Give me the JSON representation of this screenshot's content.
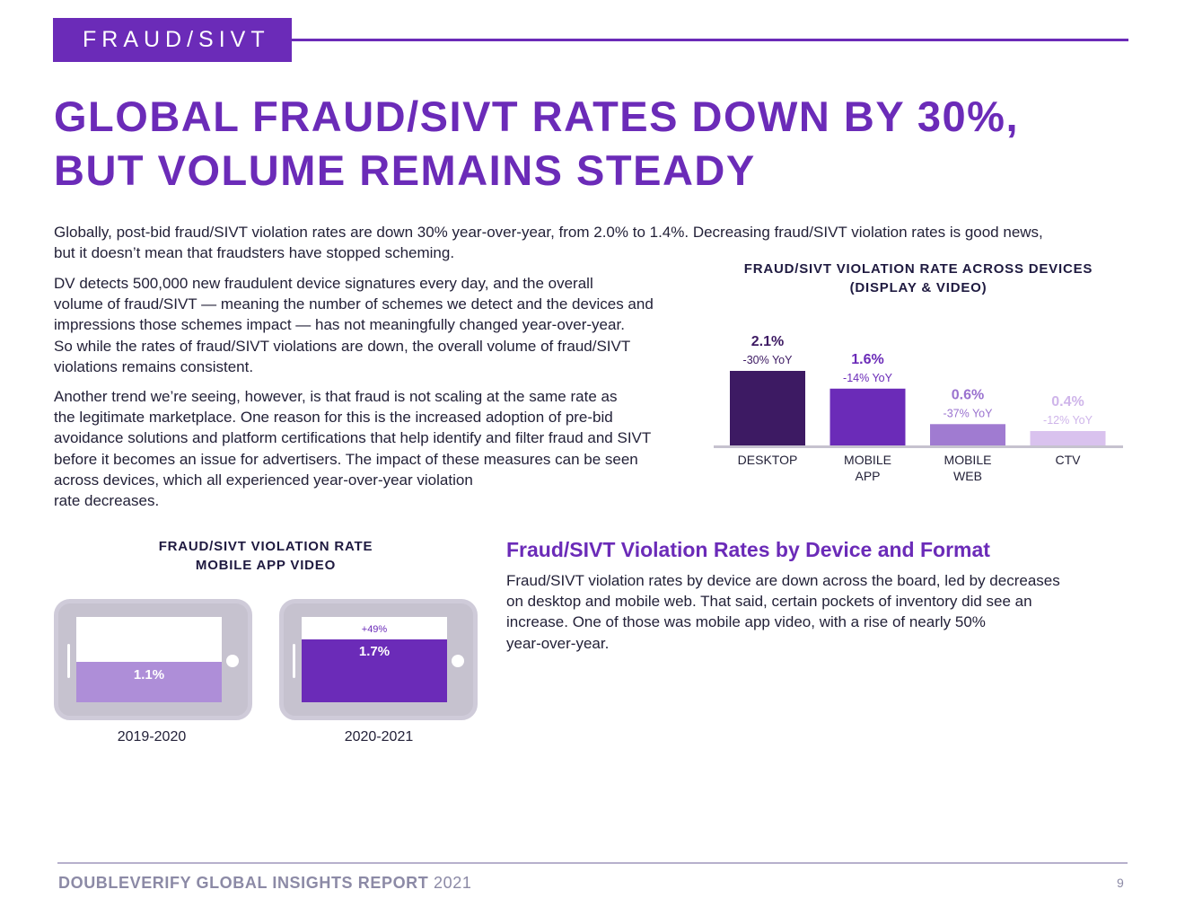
{
  "section_tag": "FRAUD/SIVT",
  "headline": {
    "line1": "GLOBAL FRAUD/SIVT RATES DOWN BY 30%,",
    "line2": "BUT VOLUME REMAINS STEADY"
  },
  "intro": {
    "line1": "Globally, post-bid fraud/SIVT violation rates are down 30% year-over-year, from 2.0% to 1.4%. Decreasing fraud/SIVT violation rates is good news,",
    "line2": "but it doesn’t mean that fraudsters have stopped scheming."
  },
  "para2": [
    "DV detects 500,000 new fraudulent device signatures every day, and the overall",
    "volume of fraud/SIVT — meaning the number of schemes we detect and the devices and",
    "impressions those schemes impact — has not meaningfully changed year-over-year.",
    "So while the rates of fraud/SIVT violations are down, the overall volume of fraud/SIVT",
    "violations remains consistent."
  ],
  "para3": [
    "Another trend we’re seeing, however, is that fraud is not scaling at the same rate as",
    "the legitimate marketplace. One reason for this is the increased adoption of pre-bid",
    "avoidance solutions and platform certifications that help identify and filter fraud and SIVT",
    "before it becomes an issue for advertisers. The impact of these measures can be seen",
    "across devices, which all experienced year-over-year violation",
    "rate decreases."
  ],
  "chart_data": [
    {
      "type": "bar",
      "title": "FRAUD/SIVT VIOLATION RATE ACROSS DEVICES (DISPLAY & VIDEO)",
      "title_line1": "FRAUD/SIVT VIOLATION RATE ACROSS DEVICES",
      "title_line2": "(DISPLAY & VIDEO)",
      "categories": [
        [
          "DESKTOP"
        ],
        [
          "MOBILE",
          "APP"
        ],
        [
          "MOBILE",
          "WEB"
        ],
        [
          "CTV"
        ]
      ],
      "values": [
        2.1,
        1.6,
        0.6,
        0.4
      ],
      "value_labels": [
        "2.1%",
        "1.6%",
        "0.6%",
        "0.4%"
      ],
      "yoy_labels": [
        "-30% YoY",
        "-14% YoY",
        "-37% YoY",
        "-12% YoY"
      ],
      "colors": [
        "#3d1a63",
        "#6b2bb8",
        "#a07bd1",
        "#d9c2ee"
      ],
      "label_colors": [
        "#3d1a63",
        "#6b2bb8",
        "#9a72cf",
        "#cfb5ea"
      ],
      "ylim": [
        0,
        2.1
      ]
    },
    {
      "type": "bar",
      "title": "FRAUD/SIVT VIOLATION RATE MOBILE APP VIDEO",
      "title_line1": "FRAUD/SIVT VIOLATION RATE",
      "title_line2": "MOBILE APP VIDEO",
      "categories": [
        "2019-2020",
        "2020-2021"
      ],
      "values": [
        1.1,
        1.7
      ],
      "value_labels": [
        "1.1%",
        "1.7%"
      ],
      "change_label": "+49%",
      "ylim": [
        0,
        2.3
      ]
    }
  ],
  "subheading": "Fraud/SIVT Violation Rates by Device and Format",
  "para4": [
    "Fraud/SIVT violation rates by device are down across the board, led by decreases",
    "on desktop and mobile web. That said, certain pockets of inventory did see an",
    "increase. One of those was mobile app video, with a rise of nearly 50%",
    "year-over-year."
  ],
  "footer": {
    "brand": "DOUBLEVERIFY GLOBAL INSIGHTS REPORT",
    "year": "2021",
    "page": "9"
  },
  "colors": {
    "accent": "#6b2bb8",
    "phone_light_fill": "#ae8ed8",
    "phone_dark_fill": "#6b2bb8",
    "axis": "#c6c2cf"
  }
}
